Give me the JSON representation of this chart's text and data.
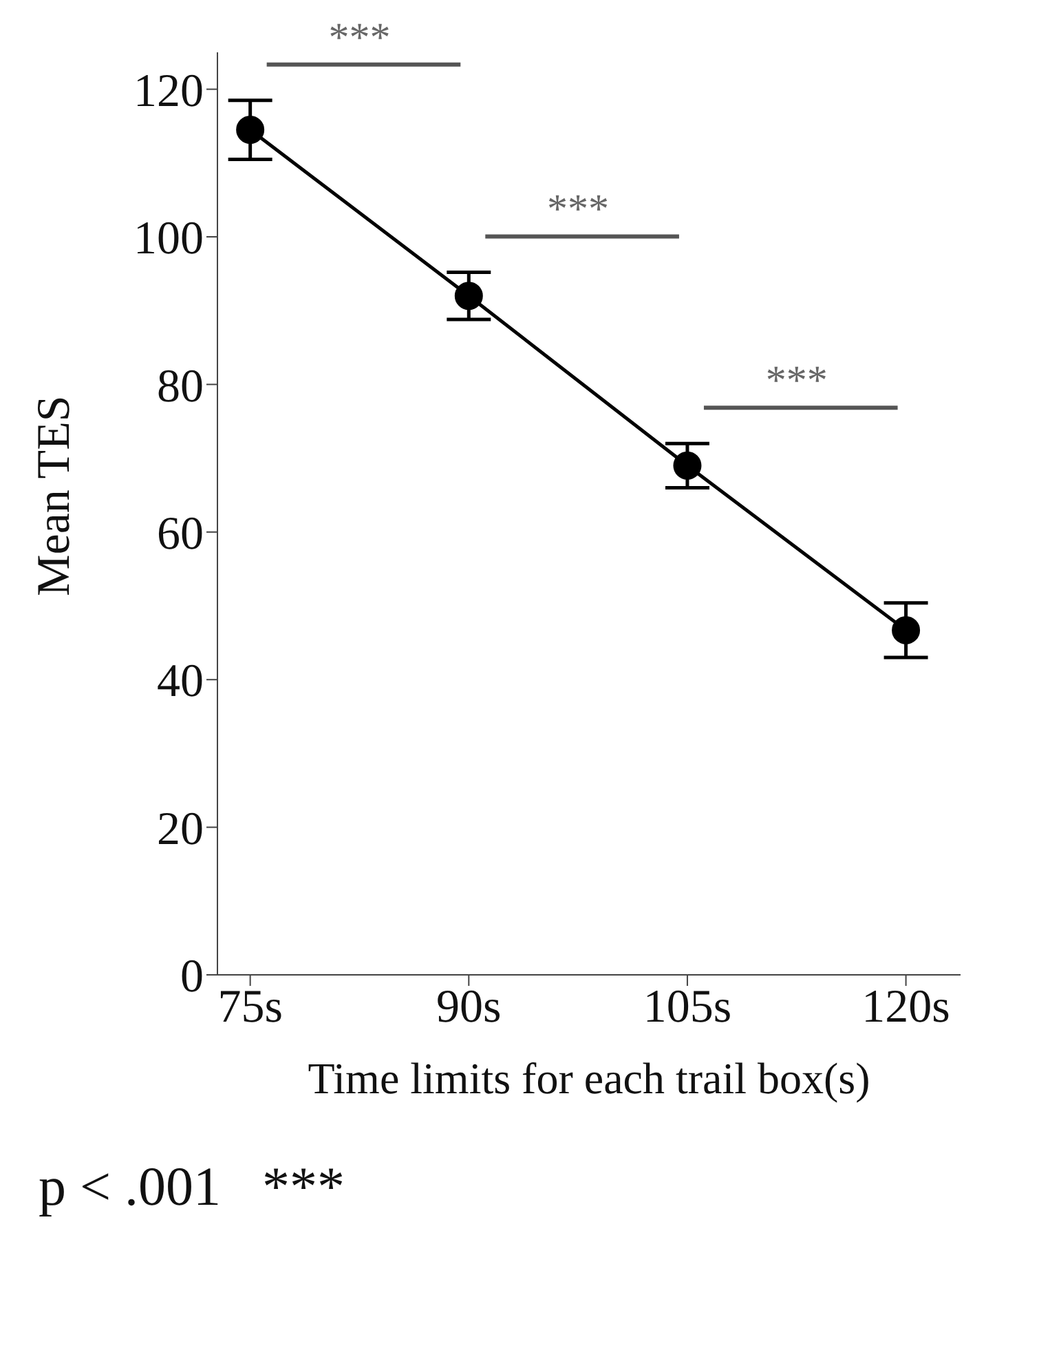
{
  "chart_data": {
    "type": "line",
    "xlabel": "Time limits for each trail box(s)",
    "ylabel": "Mean TES",
    "categories": [
      "75s",
      "90s",
      "105s",
      "120s"
    ],
    "values": [
      114.5,
      92,
      69,
      46.7
    ],
    "errors": [
      4,
      3.2,
      3,
      3.7
    ],
    "color": "#000000",
    "ylim": [
      0,
      125
    ],
    "yticks": [
      0,
      20,
      40,
      60,
      80,
      100,
      120
    ],
    "marker": "circle",
    "line_style": "solid",
    "grid": false,
    "legend": false,
    "annotations": [
      "***",
      "***",
      "***",
      "p < .001   ***"
    ]
  }
}
